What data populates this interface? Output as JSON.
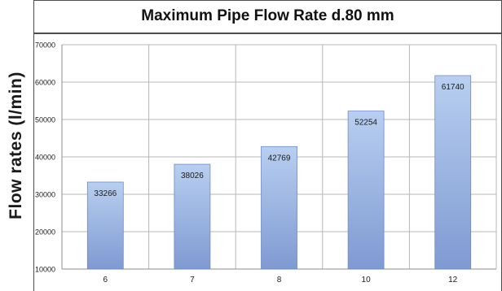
{
  "chart_data": {
    "type": "bar",
    "title": "Maximum Pipe Flow Rate d.80 mm",
    "xlabel": "",
    "ylabel": "Flow rates (l/min)",
    "categories": [
      "6",
      "7",
      "8",
      "10",
      "12"
    ],
    "values": [
      33266,
      38026,
      42769,
      52254,
      61740
    ],
    "data_labels": [
      "33266",
      "38026",
      "42769",
      "52254",
      "61740"
    ],
    "ylim": [
      10000,
      70000
    ],
    "yticks": [
      "10000",
      "20000",
      "30000",
      "40000",
      "50000",
      "60000",
      "70000"
    ],
    "grid": true,
    "legend": "none",
    "colors": {
      "bar_top": "#b8cff0",
      "bar_bottom": "#7f9ad2",
      "bar_edge": "#6f8bc6",
      "grid": "#b7b7b7"
    }
  }
}
